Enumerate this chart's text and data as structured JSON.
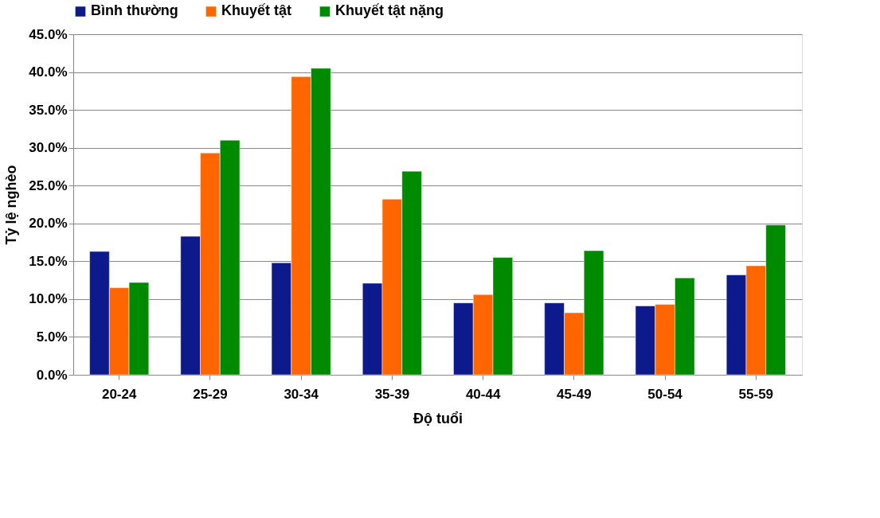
{
  "chart_data": {
    "type": "bar",
    "xlabel": "Độ tuổi",
    "ylabel": "Tỷ lệ nghèo",
    "categories": [
      "20-24",
      "25-29",
      "30-34",
      "35-39",
      "40-44",
      "45-49",
      "50-54",
      "55-59"
    ],
    "series": [
      {
        "name": "Bình thường",
        "color": "#0c1a8c",
        "values": [
          16.3,
          18.3,
          14.8,
          12.1,
          9.5,
          9.5,
          9.1,
          13.2
        ]
      },
      {
        "name": "Khuyết tật",
        "color": "#ff6600",
        "values": [
          11.5,
          29.3,
          39.4,
          23.2,
          10.6,
          8.2,
          9.3,
          14.4
        ]
      },
      {
        "name": "Khuyết tật nặng",
        "color": "#008a00",
        "values": [
          12.2,
          31.0,
          40.5,
          26.9,
          15.5,
          16.4,
          12.8,
          19.8
        ]
      }
    ],
    "ylim": [
      0,
      45
    ],
    "yticks": [
      {
        "value": 0,
        "label": "0.0%"
      },
      {
        "value": 5,
        "label": "5.0%"
      },
      {
        "value": 10,
        "label": "10.0%"
      },
      {
        "value": 15,
        "label": "15.0%"
      },
      {
        "value": 20,
        "label": "20.0%"
      },
      {
        "value": 25,
        "label": "25.0%"
      },
      {
        "value": 30,
        "label": "30.0%"
      },
      {
        "value": 35,
        "label": "35.0%"
      },
      {
        "value": 40,
        "label": "40.0%"
      },
      {
        "value": 45,
        "label": "45.0%"
      }
    ],
    "grid": "y",
    "legend": "top"
  }
}
